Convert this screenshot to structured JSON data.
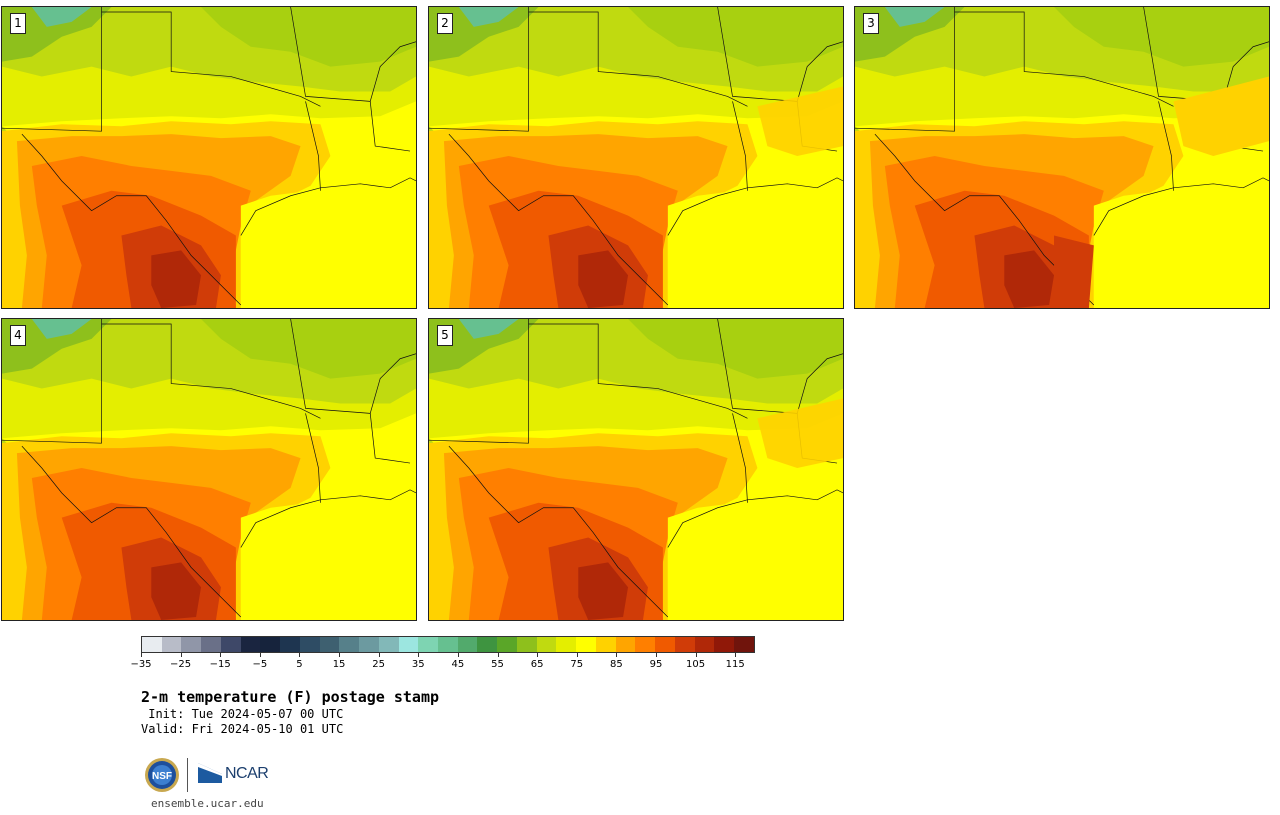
{
  "panels": [
    {
      "label": "1"
    },
    {
      "label": "2"
    },
    {
      "label": "3"
    },
    {
      "label": "4"
    },
    {
      "label": "5"
    }
  ],
  "colorbar": {
    "colors": [
      "#e8ecf0",
      "#b8bcc8",
      "#9096a8",
      "#6a7088",
      "#3e4868",
      "#1a2540",
      "#16233c",
      "#1e3550",
      "#2e4c64",
      "#3e6070",
      "#56808a",
      "#6c9aa0",
      "#82b8b8",
      "#9ce6e0",
      "#7ed4b2",
      "#66c090",
      "#52aa6c",
      "#3e9440",
      "#5aa628",
      "#8ec01c",
      "#c0da10",
      "#e4ee00",
      "#ffff00",
      "#ffd200",
      "#ffa500",
      "#ff7f00",
      "#f05a00",
      "#d03c08",
      "#b02808",
      "#901808",
      "#70140c"
    ],
    "ticks": [
      "−35",
      "−25",
      "−15",
      "−5",
      "5",
      "15",
      "25",
      "35",
      "45",
      "55",
      "65",
      "75",
      "85",
      "95",
      "105",
      "115"
    ]
  },
  "title": "2-m temperature (F) postage stamp",
  "init": " Init: Tue 2024-05-07 00 UTC",
  "valid": "Valid: Fri 2024-05-10 01 UTC",
  "logos": {
    "ncar_text": "NCAR",
    "nsf_text": "NSF"
  },
  "url": "ensemble.ucar.edu"
}
